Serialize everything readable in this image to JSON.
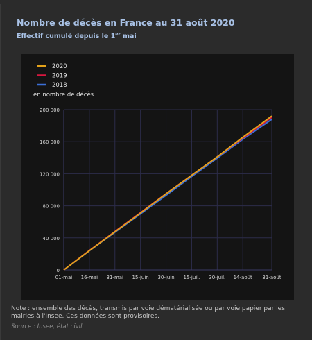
{
  "header": {
    "title": "Nombre de décès en France au 31 août 2020",
    "subtitle_main": "Effectif cumulé depuis le 1",
    "subtitle_sup": "er",
    "subtitle_end": " mai"
  },
  "chart_data": {
    "type": "line",
    "ylabel": "en nombre de décès",
    "categories": [
      "01-mai",
      "16-mai",
      "31-mai",
      "15-juin",
      "30-juin",
      "15-juil.",
      "30-juil.",
      "14-août",
      "31-août"
    ],
    "x_day_offsets": [
      0,
      15,
      30,
      45,
      60,
      75,
      90,
      105,
      122
    ],
    "ylim": [
      0,
      200000
    ],
    "yticks": [
      0,
      40000,
      80000,
      120000,
      160000,
      200000
    ],
    "ytick_labels": [
      "0",
      "40 000",
      "80 000",
      "120 000",
      "160 000",
      "200 000"
    ],
    "legend_position": "top-left",
    "grid": "vertical and horizontal",
    "series": [
      {
        "name": "2020",
        "color": "#e3a21a",
        "x": [
          0,
          15,
          30,
          45,
          60,
          75,
          90,
          105,
          122
        ],
        "values": [
          0,
          24000,
          47500,
          71000,
          95000,
          118000,
          141000,
          165500,
          192000
        ]
      },
      {
        "name": "2019",
        "color": "#d8173f",
        "x": [
          0,
          15,
          30,
          45,
          60,
          75,
          90,
          105,
          122
        ],
        "values": [
          0,
          24200,
          48000,
          71500,
          95200,
          118000,
          141000,
          164500,
          190500
        ]
      },
      {
        "name": "2018",
        "color": "#3b6fd6",
        "x": [
          0,
          15,
          30,
          45,
          60,
          75,
          90,
          105,
          122
        ],
        "values": [
          0,
          23800,
          47000,
          70000,
          93000,
          116500,
          139500,
          163000,
          188000
        ]
      }
    ]
  },
  "footer": {
    "note": "Note : ensemble des décès, transmis par voie dématérialisée ou par voie papier par les mairies à l'Insee. Ces données sont provisoires.",
    "source": "Source : Insee, état civil"
  }
}
